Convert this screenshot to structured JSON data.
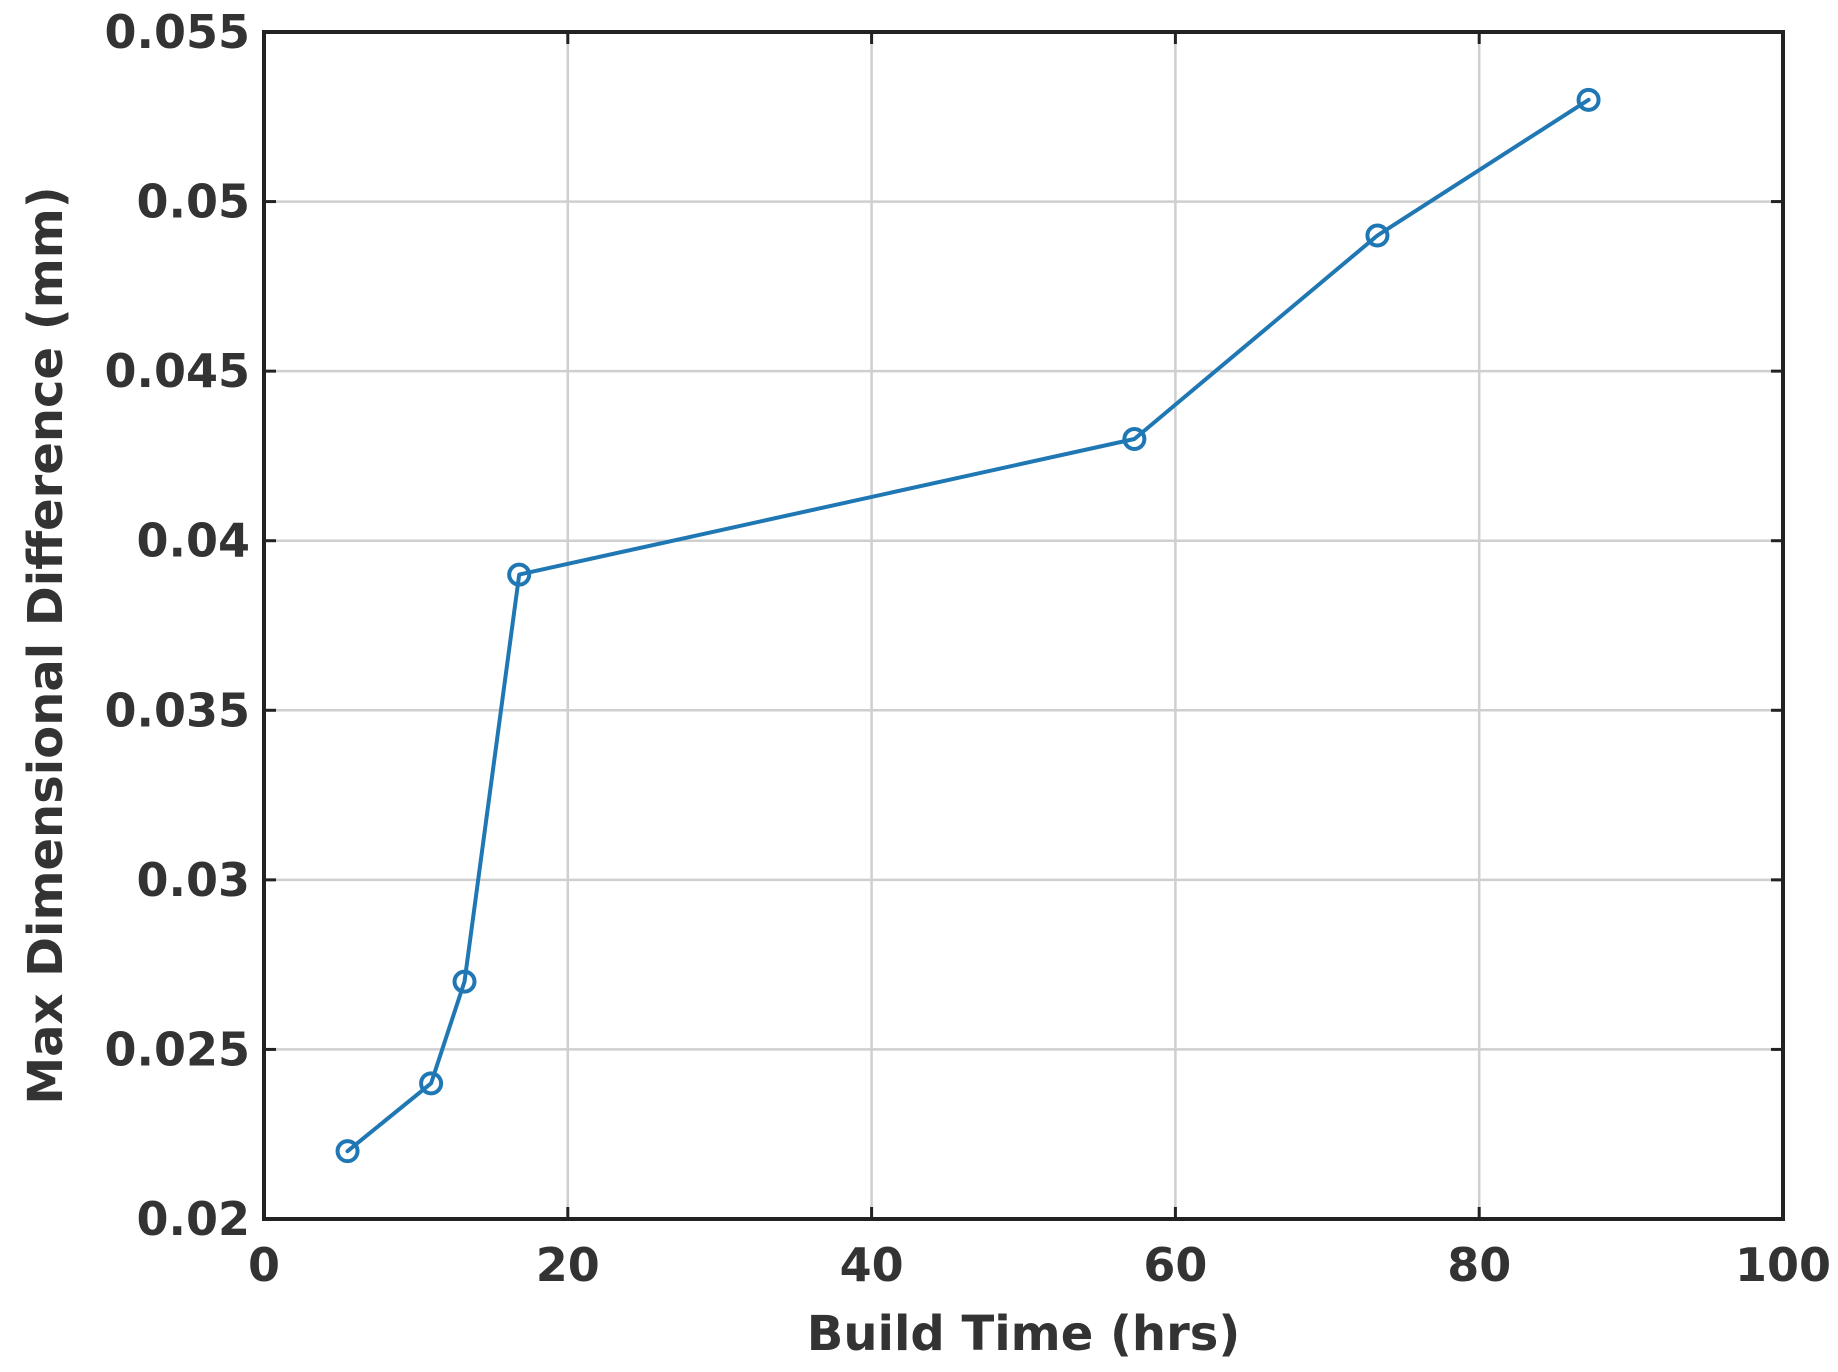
{
  "chart_data": {
    "type": "line",
    "title": "",
    "xlabel": "Build Time (hrs)",
    "ylabel": "Max Dimensional Difference (mm)",
    "xlim": [
      0,
      100
    ],
    "ylim": [
      0.02,
      0.055
    ],
    "x_ticks": [
      0,
      20,
      40,
      60,
      80,
      100
    ],
    "x_tick_labels": [
      "0",
      "20",
      "40",
      "60",
      "80",
      "100"
    ],
    "y_ticks": [
      0.02,
      0.025,
      0.03,
      0.035,
      0.04,
      0.045,
      0.05,
      0.055
    ],
    "y_tick_labels": [
      "0.02",
      "0.025",
      "0.03",
      "0.035",
      "0.04",
      "0.045",
      "0.05",
      "0.055"
    ],
    "grid": true,
    "legend": "none",
    "series": [
      {
        "color": "#1f77b4",
        "marker": "circle",
        "x": [
          5.5,
          11,
          13.2,
          16.8,
          57.3,
          73.3,
          87.2
        ],
        "y": [
          0.022,
          0.024,
          0.027,
          0.039,
          0.043,
          0.049,
          0.053
        ]
      }
    ]
  }
}
